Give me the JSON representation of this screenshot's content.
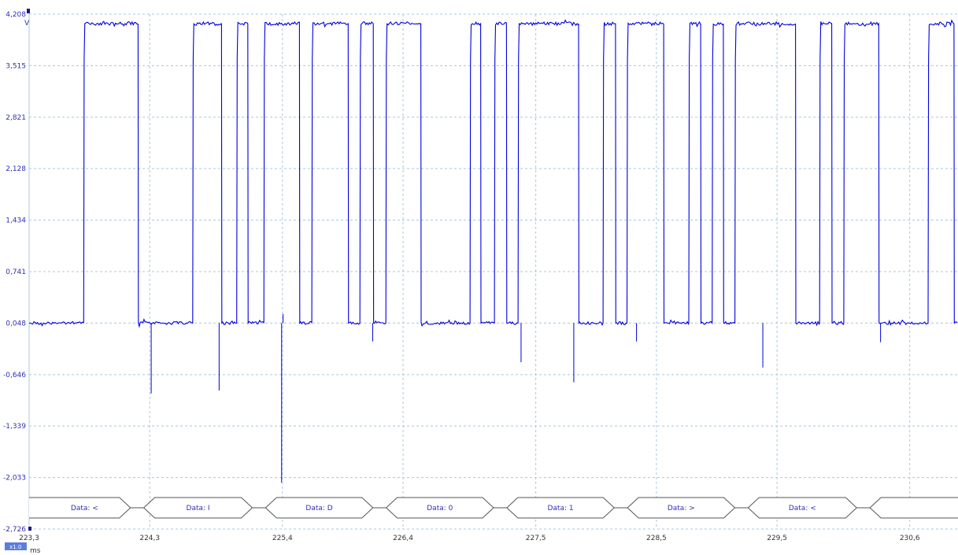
{
  "chart_data": {
    "type": "line",
    "title": "",
    "ylabel": "V",
    "xlabel": "ms",
    "zoom_label": "x1.0",
    "ylim": [
      -2.726,
      4.208
    ],
    "xlim": [
      223.3,
      231.0
    ],
    "y_ticks": [
      "4,208",
      "3,515",
      "2,821",
      "2,128",
      "1,434",
      "0,741",
      "0,048",
      "-0,646",
      "-1,339",
      "-2,033",
      "-2,726"
    ],
    "x_ticks": [
      "223,3",
      "224,3",
      "225,4",
      "226,4",
      "227,5",
      "228,5",
      "229,5",
      "230,6"
    ],
    "grid": true,
    "colors": {
      "trace": "#0000dd",
      "grid": "#a8c8dc",
      "decode": "#555555",
      "label": "#2e2eb8"
    },
    "series": [
      {
        "high_level": 4.08,
        "low_level": 0.048,
        "start_level": 0.048,
        "transitions": [
          {
            "t": 223.752,
            "to": "high"
          },
          {
            "t": 224.203,
            "to": "low"
          },
          {
            "t": 224.656,
            "to": "high"
          },
          {
            "t": 224.895,
            "to": "low"
          },
          {
            "t": 225.021,
            "to": "high"
          },
          {
            "t": 225.113,
            "to": "low"
          },
          {
            "t": 225.246,
            "to": "high"
          },
          {
            "t": 225.541,
            "to": "low"
          },
          {
            "t": 225.643,
            "to": "high"
          },
          {
            "t": 225.945,
            "to": "low"
          },
          {
            "t": 226.042,
            "to": "high"
          },
          {
            "t": 226.153,
            "to": "low"
          },
          {
            "t": 226.257,
            "to": "high"
          },
          {
            "t": 226.547,
            "to": "low"
          },
          {
            "t": 226.955,
            "to": "high"
          },
          {
            "t": 227.043,
            "to": "low"
          },
          {
            "t": 227.157,
            "to": "high"
          },
          {
            "t": 227.257,
            "to": "low"
          },
          {
            "t": 227.353,
            "to": "high"
          },
          {
            "t": 227.855,
            "to": "low"
          },
          {
            "t": 228.058,
            "to": "high"
          },
          {
            "t": 228.161,
            "to": "low"
          },
          {
            "t": 228.256,
            "to": "high"
          },
          {
            "t": 228.56,
            "to": "low"
          },
          {
            "t": 228.768,
            "to": "high"
          },
          {
            "t": 228.867,
            "to": "low"
          },
          {
            "t": 228.962,
            "to": "high"
          },
          {
            "t": 229.055,
            "to": "low"
          },
          {
            "t": 229.151,
            "to": "high"
          },
          {
            "t": 229.653,
            "to": "low"
          },
          {
            "t": 229.853,
            "to": "high"
          },
          {
            "t": 229.953,
            "to": "low"
          },
          {
            "t": 230.053,
            "to": "high"
          },
          {
            "t": 230.343,
            "to": "low"
          },
          {
            "t": 230.752,
            "to": "high"
          },
          {
            "t": 230.967,
            "to": "low"
          },
          {
            "t": 231.062,
            "to": "high"
          }
        ],
        "spikes": [
          {
            "t": 224.312,
            "v": -0.9
          },
          {
            "t": 224.875,
            "v": -0.86
          },
          {
            "t": 225.393,
            "v": -2.1
          },
          {
            "t": 225.405,
            "v": 0.17
          },
          {
            "t": 226.148,
            "v": -0.2
          },
          {
            "t": 227.378,
            "v": -0.48
          },
          {
            "t": 227.815,
            "v": -0.75
          },
          {
            "t": 228.335,
            "v": -0.2
          },
          {
            "t": 229.382,
            "v": -0.55
          },
          {
            "t": 230.358,
            "v": -0.21
          }
        ]
      }
    ],
    "decode": [
      {
        "label": "Data: <",
        "start": 223.3,
        "end": 224.14,
        "open_left": true
      },
      {
        "label": "Data: I",
        "start": 224.25,
        "end": 225.15
      },
      {
        "label": "Data: D",
        "start": 225.26,
        "end": 226.15
      },
      {
        "label": "Data: 0",
        "start": 226.26,
        "end": 227.15
      },
      {
        "label": "Data: 1",
        "start": 227.26,
        "end": 228.15
      },
      {
        "label": "Data: >",
        "start": 228.26,
        "end": 229.15
      },
      {
        "label": "Data: <",
        "start": 229.26,
        "end": 230.16
      },
      {
        "label": "",
        "start": 230.27,
        "end": 231.0,
        "open_right": true
      }
    ]
  }
}
